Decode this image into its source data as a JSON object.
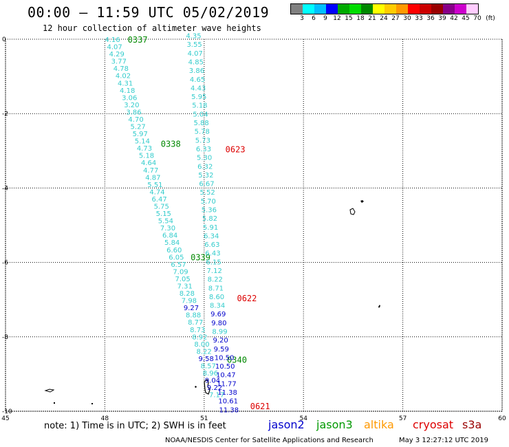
{
  "header": {
    "title": "00:00 – 11:59 UTC 05/02/2019",
    "subtitle": "12 hour collection of altimeter wave heights"
  },
  "color_scale": {
    "labels": [
      "3",
      "6",
      "9",
      "12",
      "15",
      "18",
      "21",
      "24",
      "27",
      "30",
      "33",
      "36",
      "39",
      "42",
      "45",
      "70",
      "(ft)"
    ],
    "colors": [
      "#808080",
      "#00ffff",
      "#00bfff",
      "#0000ff",
      "#00aa00",
      "#00dd00",
      "#008800",
      "#ffff00",
      "#ffcc00",
      "#ff9900",
      "#ff0000",
      "#cc0000",
      "#990000",
      "#880088",
      "#cc00cc",
      "#ffccff"
    ]
  },
  "note": "note: 1) Time is in UTC; 2) SWH is in feet",
  "satellites": [
    {
      "name": "jason2",
      "color": "#0000cc"
    },
    {
      "name": "jason3",
      "color": "#009900"
    },
    {
      "name": "altika",
      "color": "#ff9900"
    },
    {
      "name": "cryosat",
      "color": "#dd0000"
    },
    {
      "name": "s3a",
      "color": "#990000"
    }
  ],
  "footer": {
    "credit": "NOAA/NESDIS Center for Satellite Applications and Research",
    "timestamp": "May  3 12:27:12 UTC 2019"
  },
  "map": {
    "x_ticks": [
      "45",
      "48",
      "51",
      "54",
      "57",
      "60"
    ],
    "y_ticks": [
      "0",
      "-2",
      "-4",
      "-6",
      "-8",
      "-10"
    ],
    "x_range": [
      45,
      60
    ],
    "y_range": [
      0,
      -10
    ],
    "grid_color": "#000000"
  },
  "tracks": [
    {
      "color": "#33cccc",
      "lon_start": 48.0,
      "lat_start": 0.0,
      "lon_end": 51.15,
      "lat_end": -9.55,
      "values": [
        "4.16",
        "4.07",
        "4.29",
        "3.77",
        "4.78",
        "4.02",
        "4.31",
        "4.18",
        "3.06",
        "3.20",
        "3.86",
        "4.70",
        "5.27",
        "5.97",
        "5.14",
        "4.73",
        "5.18",
        "4.64",
        "4.77",
        "4.87",
        "5.51",
        "4.74",
        "6.47",
        "5.75",
        "5.15",
        "5.54",
        "7.30",
        "6.84",
        "5.84",
        "6.60",
        "6.05",
        "6.57",
        "7.09",
        "7.05",
        "7.31",
        "8.28",
        "7.98",
        "9.27",
        "8.88",
        "8.77",
        "8.73",
        "8.92",
        "8.00",
        "8.22",
        "9.58",
        "8.57",
        "8.96",
        "9.04",
        "9.22",
        "7.17"
      ],
      "value_colors": {
        "9.27": "#0000cc",
        "9.58": "#0000cc",
        "9.04": "#0000cc",
        "9.22": "#0000cc"
      },
      "time_labels": [
        {
          "text": "0337",
          "lon": 48.4,
          "lat": 0.0,
          "color": "#008800"
        },
        {
          "text": "0338",
          "lon": 49.4,
          "lat": -2.8,
          "color": "#008800"
        },
        {
          "text": "0339",
          "lon": 50.3,
          "lat": -5.85,
          "color": "#008800"
        },
        {
          "text": "0340",
          "lon": 51.4,
          "lat": -8.6,
          "color": "#008800"
        }
      ]
    },
    {
      "color": "#33cccc",
      "lon_start": 50.45,
      "lat_start": 0.1,
      "lon_end": 51.45,
      "lat_end": -9.95,
      "values": [
        "4.35",
        "3.55",
        "4.07",
        "4.85",
        "3.86",
        "4.65",
        "4.43",
        "5.95",
        "5.18",
        "5.04",
        "5.88",
        "5.78",
        "5.73",
        "6.33",
        "5.30",
        "6.32",
        "5.32",
        "6.67",
        "5.52",
        "5.70",
        "5.36",
        "5.82",
        "5.91",
        "6.34",
        "6.63",
        "6.43",
        "6.15",
        "7.12",
        "8.22",
        "8.71",
        "8.60",
        "8.34",
        "9.69",
        "9.80",
        "8.99",
        "9.20",
        "9.59",
        "10.50",
        "10.50",
        "10.47",
        "11.77",
        "11.38",
        "10.61",
        "11.38"
      ],
      "value_colors": {
        "9.69": "#0000cc",
        "9.80": "#0000cc",
        "9.20": "#0000cc",
        "9.59": "#0000cc",
        "10.50": "#0000cc",
        "10.47": "#0000cc",
        "11.77": "#0000cc",
        "11.38": "#0000cc",
        "10.61": "#0000cc"
      },
      "time_labels": [
        {
          "text": "0623",
          "lon": 51.35,
          "lat": -2.95,
          "color": "#dd0000"
        },
        {
          "text": "0622",
          "lon": 51.7,
          "lat": -6.95,
          "color": "#dd0000"
        },
        {
          "text": "0621",
          "lon": 52.1,
          "lat": -9.85,
          "color": "#dd0000"
        }
      ]
    }
  ]
}
